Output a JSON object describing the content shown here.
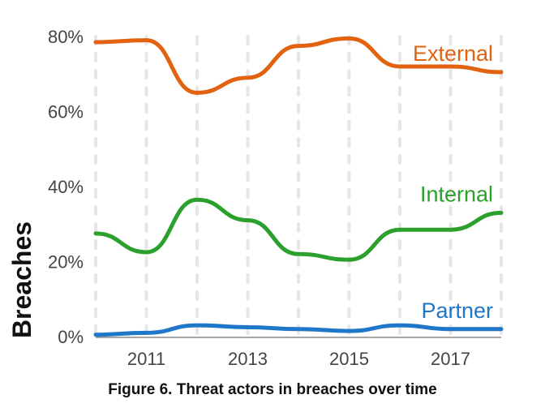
{
  "caption": "Figure 6. Threat actors in breaches over time",
  "chart_data": {
    "type": "line",
    "title": "",
    "xlabel": "",
    "ylabel": "Breaches",
    "x": [
      2010,
      2011,
      2012,
      2013,
      2014,
      2015,
      2016,
      2017,
      2018
    ],
    "xlim": [
      2010,
      2018
    ],
    "ylim": [
      0,
      80
    ],
    "x_ticks": [
      {
        "value": 2011,
        "label": "2011"
      },
      {
        "value": 2013,
        "label": "2013"
      },
      {
        "value": 2015,
        "label": "2015"
      },
      {
        "value": 2017,
        "label": "2017"
      }
    ],
    "y_ticks": [
      {
        "value": 0,
        "label": "0%"
      },
      {
        "value": 20,
        "label": "20%"
      },
      {
        "value": 40,
        "label": "40%"
      },
      {
        "value": 60,
        "label": "60%"
      },
      {
        "value": 80,
        "label": "80%"
      }
    ],
    "grid": "vertical dotted lines at each year",
    "legend": "inline labels at right end of each line",
    "series": [
      {
        "name": "External",
        "color": "#e2620f",
        "values": [
          78.5,
          79,
          65,
          69,
          77.5,
          79.5,
          72,
          72,
          70.5
        ]
      },
      {
        "name": "Internal",
        "color": "#2ca02c",
        "values": [
          27.5,
          22.5,
          36.5,
          31,
          22,
          20.5,
          28.5,
          28.5,
          33
        ]
      },
      {
        "name": "Partner",
        "color": "#1f77c9",
        "values": [
          0.5,
          1,
          3,
          2.5,
          2,
          1.5,
          3,
          2,
          2
        ]
      }
    ]
  }
}
